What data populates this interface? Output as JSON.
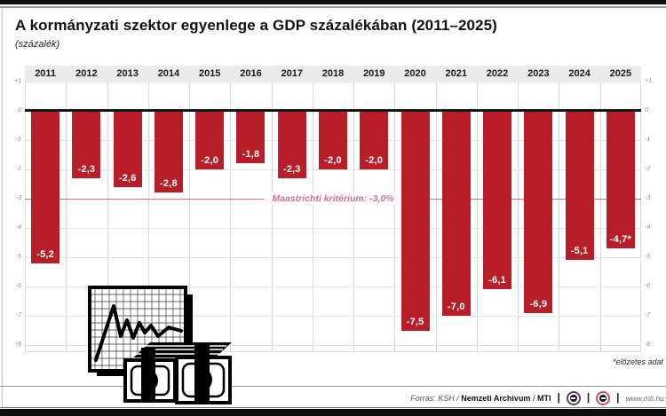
{
  "page": {
    "title": "A kormányzati szektor egyenlege a GDP százalékában (2011–2025)",
    "subtitle": "(százalék)"
  },
  "chart_data": {
    "type": "bar",
    "title": "A kormányzati szektor egyenlege a GDP százalékában (2011–2025)",
    "ylabel": "(százalék)",
    "categories": [
      "2011",
      "2012",
      "2013",
      "2014",
      "2015",
      "2016",
      "2017",
      "2018",
      "2019",
      "2020",
      "2021",
      "2022",
      "2023",
      "2024",
      "2025"
    ],
    "values": [
      -5.2,
      -2.3,
      -2.6,
      -2.8,
      -2.0,
      -1.8,
      -2.3,
      -2.0,
      -2.0,
      -7.5,
      -7.0,
      -6.1,
      -6.9,
      -5.1,
      -4.7
    ],
    "value_labels": [
      "-5,2",
      "-2,3",
      "-2,6",
      "-2,8",
      "-2,0",
      "-1,8",
      "-2,3",
      "-2,0",
      "-2,0",
      "-7,5",
      "-7,0",
      "-6,1",
      "-6,9",
      "-5,1",
      "-4,7*"
    ],
    "ylim": [
      -8,
      1
    ],
    "y_ticks": [
      "+1",
      "0",
      "-1",
      "-2",
      "-3",
      "-4",
      "-5",
      "-6",
      "-7",
      "-8"
    ],
    "grid": true,
    "reference_line": {
      "value": -3.0,
      "label": "Maastrichti kritérium: -3,0%"
    },
    "bar_color": "#b81e28",
    "reference_color": "#d2707d",
    "zero_line_color": "#141414"
  },
  "annotations": {
    "footnote": "*előzetes adat"
  },
  "footer": {
    "source_prefix": "Forrás: KSH / ",
    "source_bold1": "Nemzeti Archivum",
    "source_sep": " / ",
    "source_bold2": "MTI",
    "divider": "|",
    "url": "www.mti.hu"
  },
  "icons": {
    "illustration": "chart-and-money-stacks",
    "logo1": "mtva-circle-logo",
    "logo2": "mti-circle-logo"
  }
}
